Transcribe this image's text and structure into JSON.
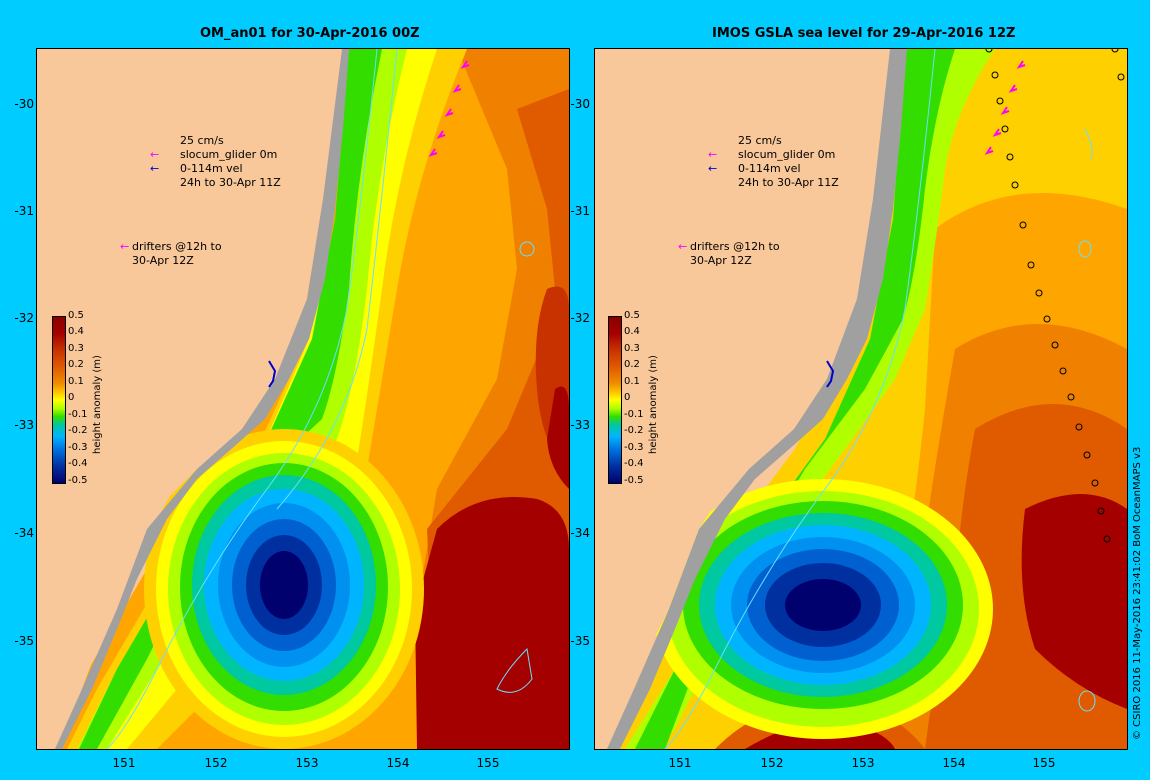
{
  "left_panel": {
    "title": "OM_an01 for 30-Apr-2016 00Z"
  },
  "right_panel": {
    "title": "IMOS GSLA sea level  for 29-Apr-2016 12Z"
  },
  "axes": {
    "lat_ticks": [
      "-30",
      "-31",
      "-32",
      "-33",
      "-34",
      "-35"
    ],
    "lon_ticks": [
      "151",
      "152",
      "153",
      "154",
      "155"
    ]
  },
  "legend": {
    "scale": "25 cm/s",
    "glider": "slocum_glider 0m",
    "glider_vel_1": "0-114m vel",
    "glider_vel_2": "24h to 30-Apr 11Z",
    "drifters_1": "drifters @12h to",
    "drifters_2": "30-Apr 12Z"
  },
  "colorbar": {
    "title": "height anomaly (m)",
    "labels": [
      "0.5",
      "0.4",
      "0.3",
      "0.2",
      "0.1",
      "0",
      "-0.1",
      "-0.2",
      "-0.3",
      "-0.4",
      "-0.5"
    ]
  },
  "credit": "© CSIRO 2016  11-May-2016 23:41:02 BoM OceanMAPS v3",
  "colors": {
    "background": "#00ccff",
    "land": "#f9c89a",
    "glider": "#0000cc",
    "drifter": "#ff00ff",
    "contour": "#66e0ff"
  }
}
